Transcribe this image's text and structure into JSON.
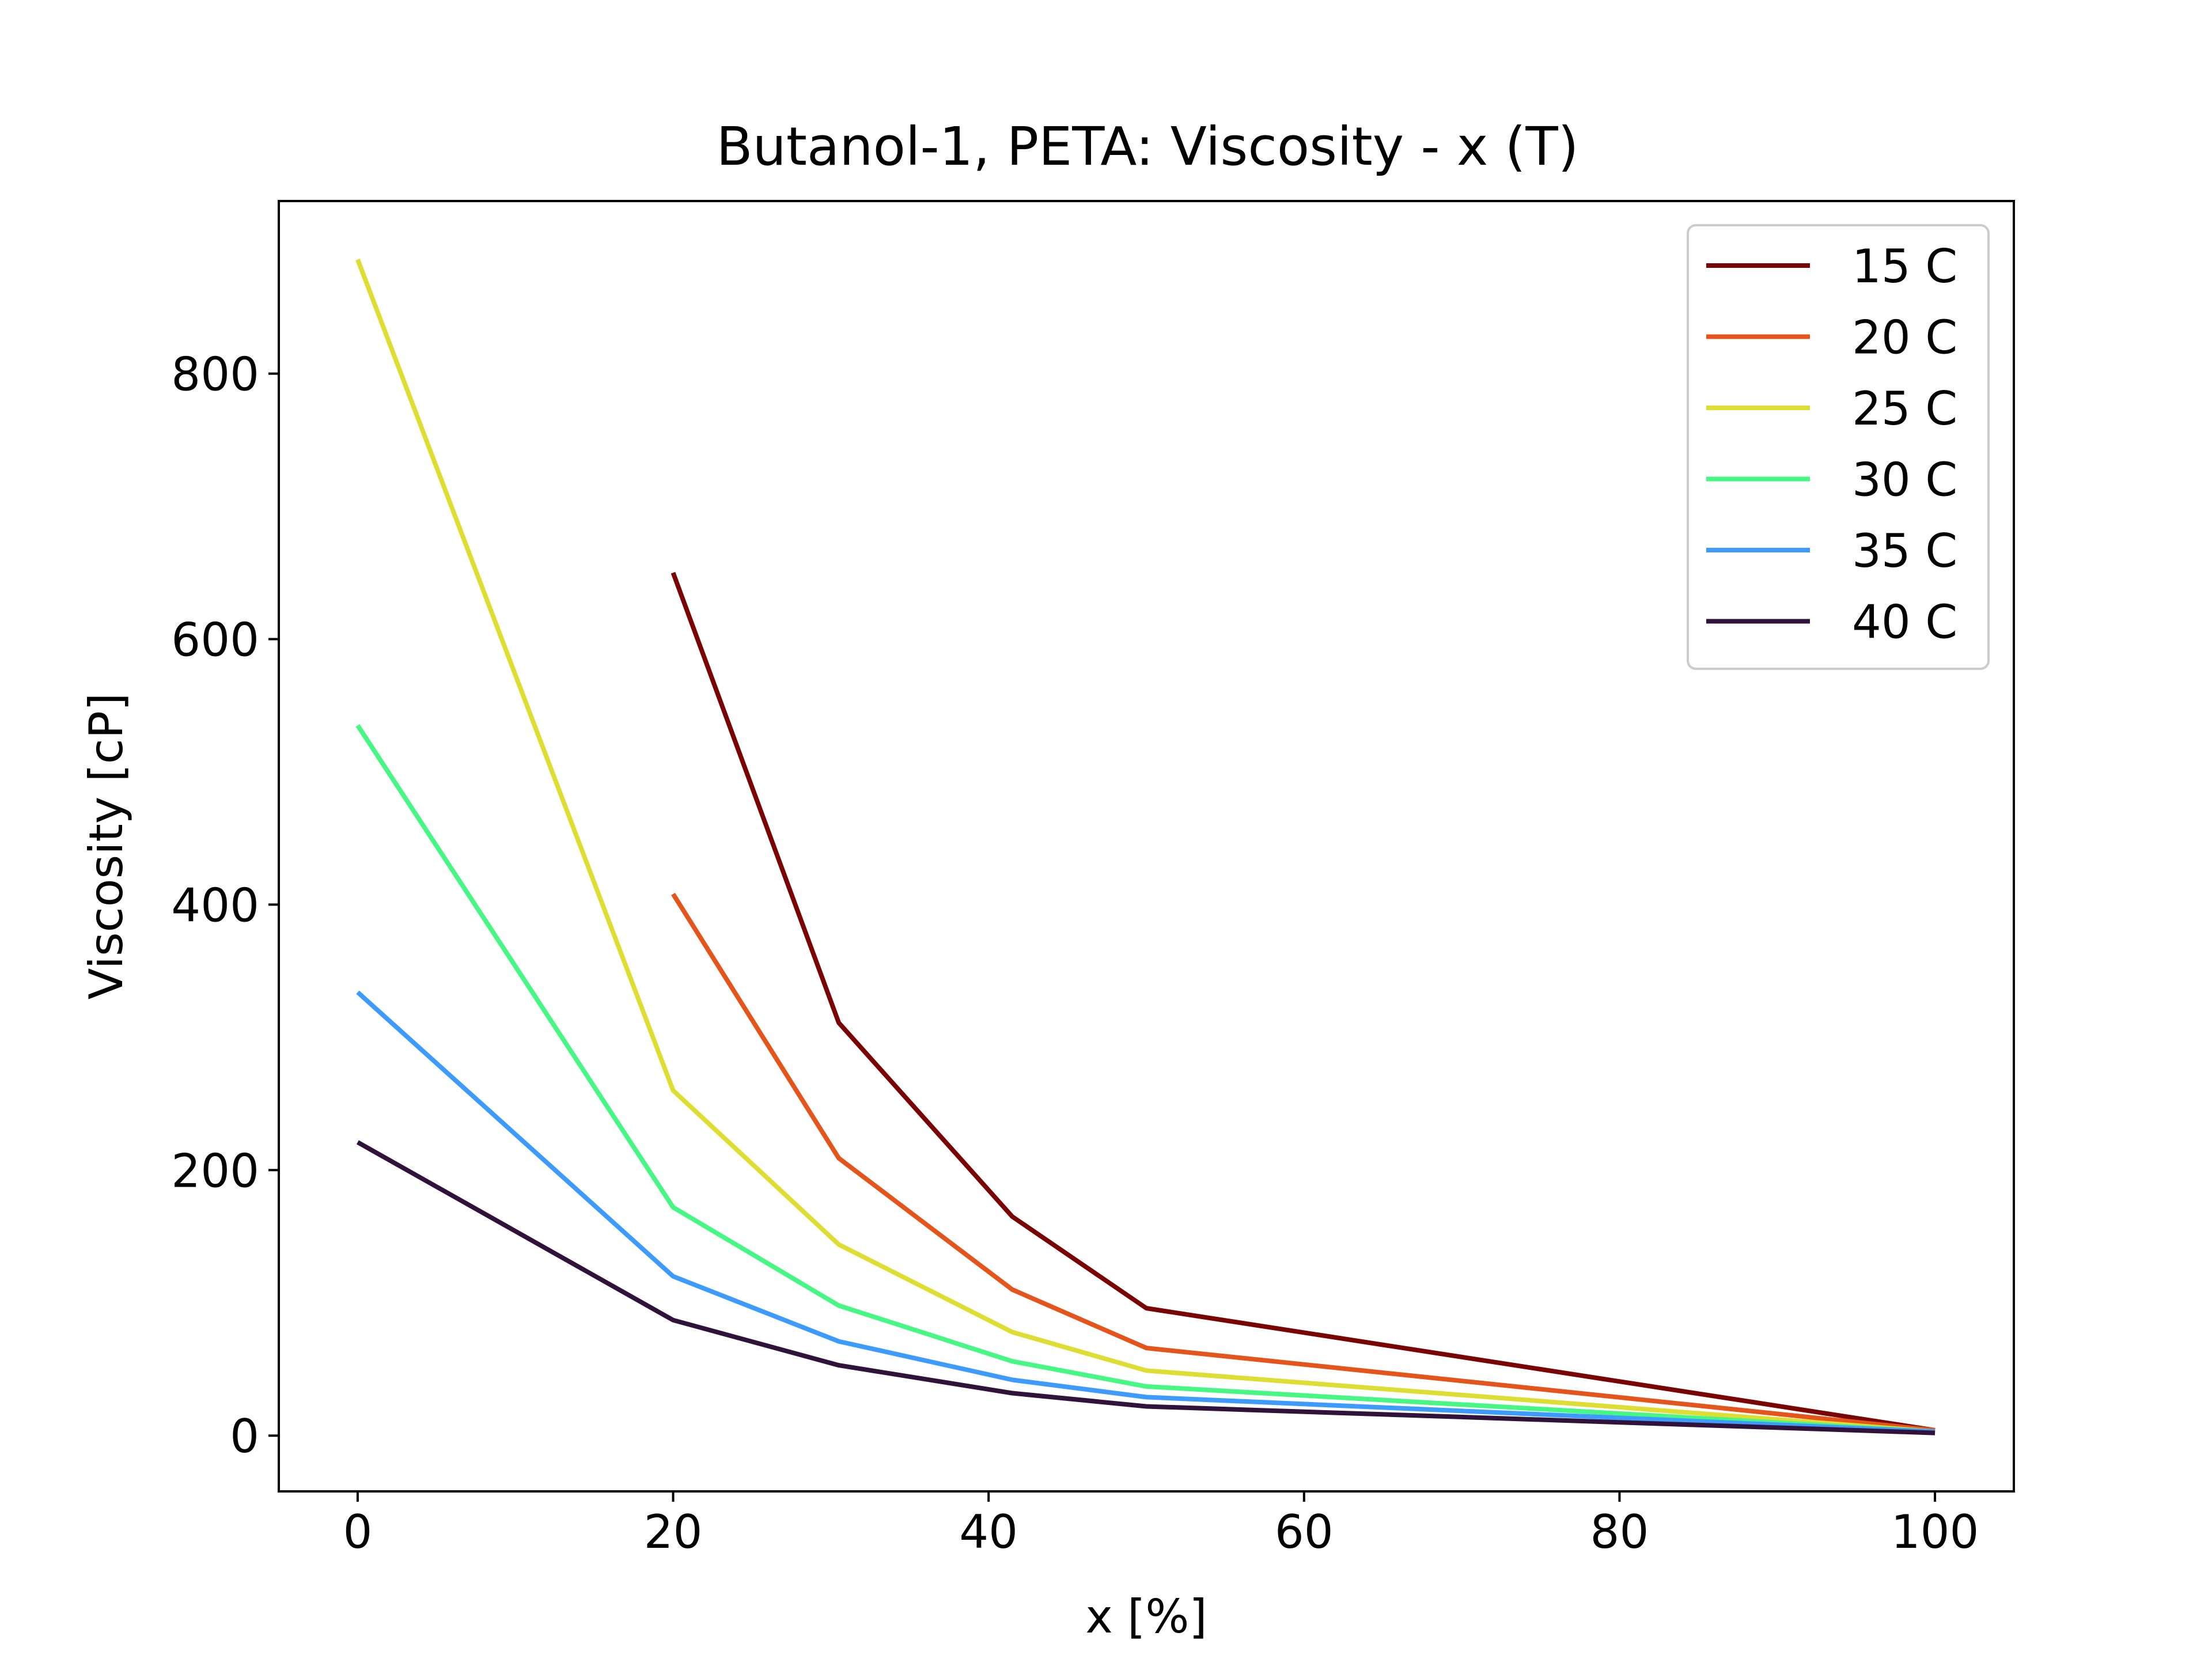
{
  "chart_data": {
    "type": "line",
    "title": "Butanol-1, PETA: Viscosity - x (T)",
    "xlabel": "x [%]",
    "ylabel": "Viscosity [cP]",
    "xlim": [
      -5,
      105
    ],
    "ylim": [
      -42,
      930
    ],
    "xticks": [
      0,
      20,
      40,
      60,
      80,
      100
    ],
    "yticks": [
      0,
      200,
      400,
      600,
      800
    ],
    "xtick_labels": [
      "0",
      "20",
      "40",
      "60",
      "80",
      "100"
    ],
    "ytick_labels": [
      "0",
      "200",
      "400",
      "600",
      "800"
    ],
    "grid": false,
    "legend_position": "top-right",
    "series": [
      {
        "name": "15 C",
        "color": "#7a0403",
        "x": [
          20,
          30.5,
          41.5,
          50,
          100
        ],
        "y": [
          650,
          311,
          165,
          96,
          4
        ]
      },
      {
        "name": "20 C",
        "color": "#e4541b",
        "x": [
          20,
          30.5,
          41.5,
          50,
          100
        ],
        "y": [
          408,
          209,
          110,
          66,
          4
        ]
      },
      {
        "name": "25 C",
        "color": "#dedd32",
        "x": [
          0,
          20,
          30.5,
          41.5,
          50,
          100
        ],
        "y": [
          886,
          260,
          144,
          78,
          49,
          3
        ]
      },
      {
        "name": "30 C",
        "color": "#46f883",
        "x": [
          0,
          20,
          30.5,
          41.5,
          50,
          100
        ],
        "y": [
          535,
          172,
          98,
          56,
          37,
          3
        ]
      },
      {
        "name": "35 C",
        "color": "#3e9bfe",
        "x": [
          0,
          20,
          30.5,
          41.5,
          50,
          100
        ],
        "y": [
          334,
          120,
          71,
          42,
          29,
          3
        ]
      },
      {
        "name": "40 C",
        "color": "#30123b",
        "x": [
          0,
          20,
          30.5,
          41.5,
          50,
          100
        ],
        "y": [
          221,
          87,
          53,
          32,
          22,
          2
        ]
      }
    ]
  }
}
